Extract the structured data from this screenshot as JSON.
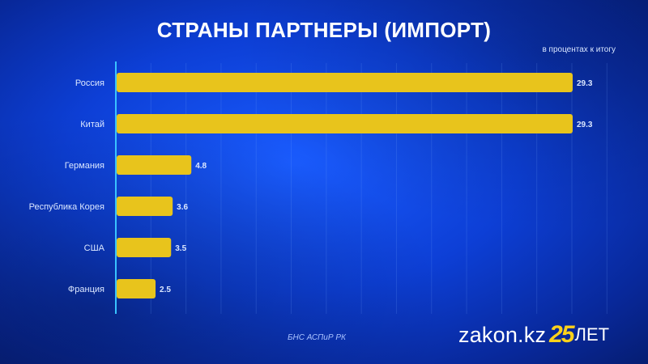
{
  "header": {
    "title": "СТРАНЫ ПАРТНЕРЫ (ИМПОРТ)",
    "unit_note": "в процентах к итогу"
  },
  "footer": {
    "source": "БНС АСПиР РК",
    "logo": {
      "name": "zakon.kz",
      "anniversary": "25",
      "suffix": "ЛЕТ"
    }
  },
  "colors": {
    "bar": "#e8c41c",
    "axis": "#39c3ff",
    "grid": "rgba(120,170,255,0.18)"
  },
  "chart_data": {
    "type": "bar",
    "orientation": "horizontal",
    "title": "СТРАНЫ ПАРТНЕРЫ (ИМПОРТ)",
    "ylabel": "в процентах к итогу",
    "categories": [
      "Россия",
      "Китай",
      "Германия",
      "Республика Корея",
      "США",
      "Франция"
    ],
    "values": [
      29.3,
      29.3,
      4.8,
      3.6,
      3.5,
      2.5
    ],
    "value_labels": [
      "29.3",
      "29.3",
      "4.8",
      "3.6",
      "3.5",
      "2.5"
    ],
    "xlim": [
      0,
      29.3
    ],
    "grid": true
  }
}
